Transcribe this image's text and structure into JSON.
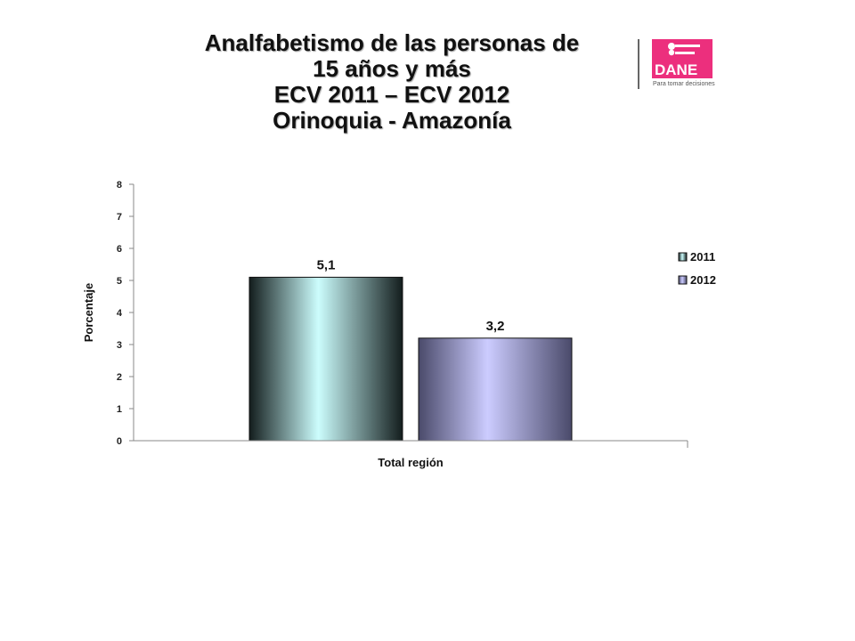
{
  "title": {
    "lines": [
      "Analfabetismo de las personas de",
      "15 años y más",
      "ECV 2011 – ECV 2012",
      "Orinoquia - Amazonía"
    ]
  },
  "logo": {
    "brand": "DANE",
    "tagline": "Para tomar decisiones",
    "brand_color": "#EC2F7D"
  },
  "chart_data": {
    "type": "bar",
    "categories": [
      "Total región"
    ],
    "series": [
      {
        "name": "2011",
        "values": [
          5.1
        ],
        "value_labels": [
          "5,1"
        ],
        "colors": [
          "#131d1d",
          "#ccfdfd",
          "#131d1d"
        ]
      },
      {
        "name": "2012",
        "values": [
          3.2
        ],
        "value_labels": [
          "3,2"
        ],
        "colors": [
          "#4a4a6a",
          "#ccccff",
          "#4a4a6a"
        ]
      }
    ],
    "title": "",
    "xlabel": "Total región",
    "ylabel": "Porcentaje",
    "ylim": [
      0,
      8
    ],
    "yticks": [
      0,
      1,
      2,
      3,
      4,
      5,
      6,
      7,
      8
    ],
    "legend_position": "right",
    "grid": false
  }
}
